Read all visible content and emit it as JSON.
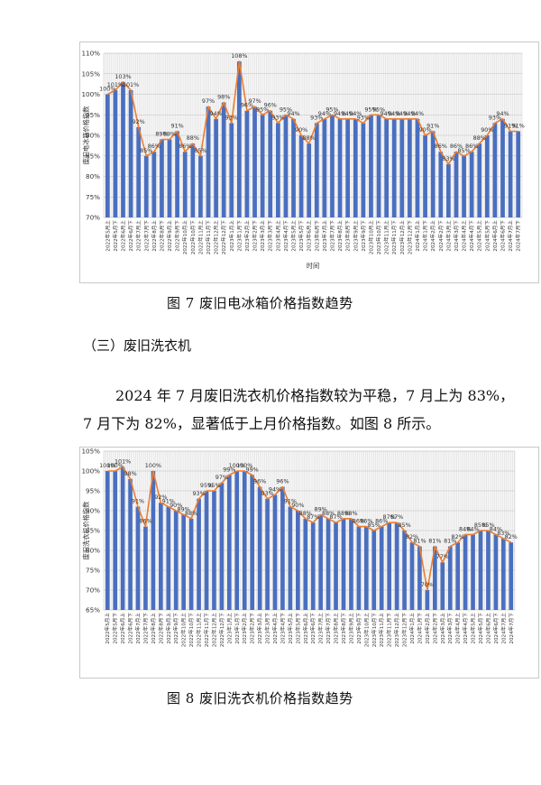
{
  "figure7": {
    "caption": "图 7  废旧电冰箱价格指数趋势",
    "chart_data": {
      "type": "bar",
      "ylabel": "废旧电冰箱价格指数",
      "xlabel": "时间",
      "ylim": [
        70,
        110
      ],
      "yticks": [
        "70%",
        "75%",
        "80%",
        "85%",
        "90%",
        "95%",
        "100%",
        "105%",
        "110%"
      ],
      "grid": true,
      "categories": [
        "2022年5月上",
        "2022年5月下",
        "2022年6月上",
        "2022年6月下",
        "2022年7月上",
        "2022年7月下",
        "2022年8月上",
        "2022年8月下",
        "2022年9月上",
        "2022年9月下",
        "2022年10月上",
        "2022年10月下",
        "2022年11月上",
        "2022年11月下",
        "2022年12月上",
        "2022年12月下",
        "2023年1月上",
        "2023年1月下",
        "2023年2月上",
        "2023年2月下",
        "2023年3月上",
        "2023年3月下",
        "2023年4月上",
        "2023年4月下",
        "2023年5月上",
        "2023年5月下",
        "2023年6月上",
        "2023年6月下",
        "2023年7月上",
        "2023年7月下",
        "2023年8月上",
        "2023年8月下",
        "2023年9月上",
        "2023年9月下",
        "2023年10月上",
        "2023年10月下",
        "2023年11月上",
        "2023年11月下",
        "2023年12月上",
        "2023年12月下",
        "2024年1月上",
        "2024年1月下",
        "2024年2月上",
        "2024年2月下",
        "2024年3月上",
        "2024年3月下",
        "2024年4月上",
        "2024年4月下",
        "2024年5月上",
        "2024年5月下",
        "2024年6月上",
        "2024年6月下",
        "2024年7月上",
        "2024年7月下"
      ],
      "values": [
        100,
        101,
        103,
        101,
        92,
        85,
        86,
        89,
        89,
        91,
        86,
        88,
        85,
        97,
        94,
        98,
        93,
        108,
        96,
        97,
        95,
        96,
        93,
        95,
        94,
        90,
        88,
        93,
        94,
        95,
        94,
        94,
        94,
        93,
        95,
        95,
        94,
        94,
        94,
        94,
        94,
        90,
        91,
        86,
        83,
        86,
        85,
        86,
        88,
        90,
        93,
        94,
        91,
        91
      ],
      "labels": [
        "100%",
        "101%",
        "103%",
        "101%",
        "92%",
        "85%",
        "86%",
        "89%",
        "89%",
        "91%",
        "86%",
        "88%",
        "85%",
        "97%",
        "94%",
        "98%",
        "93%",
        "108%",
        "96%",
        "97%",
        "95%",
        "96%",
        "93%",
        "95%",
        "94%",
        "90%",
        "88%",
        "93%",
        "94%",
        "95%",
        "94%",
        "94%",
        "94%",
        "93%",
        "95%",
        "95%",
        "94%",
        "94%",
        "94%",
        "94%",
        "94%",
        "90%",
        "91%",
        "86%",
        "83%",
        "86%",
        "85%",
        "86%",
        "88%",
        "90%",
        "93%",
        "94%",
        "91%",
        "91%"
      ],
      "colors": {
        "bar": "#4a6fbf",
        "line": "#ed7d31"
      }
    }
  },
  "section": {
    "heading": "（三）废旧洗衣机"
  },
  "paragraph": {
    "line1": "2024 年 7 月废旧洗衣机价格指数较为平稳，7 月上为 83%，",
    "line2": "7 月下为 82%，显著低于上月价格指数。如图 8 所示。"
  },
  "figure8": {
    "caption": "图 8  废旧洗衣机价格指数趋势",
    "chart_data": {
      "type": "bar",
      "ylabel": "废旧洗衣机价格指数",
      "xlabel": "",
      "ylim": [
        65,
        105
      ],
      "yticks": [
        "65%",
        "70%",
        "75%",
        "80%",
        "85%",
        "90%",
        "95%",
        "100%",
        "105%"
      ],
      "grid": true,
      "categories": [
        "2022年5月上",
        "2022年5月下",
        "2022年6月上",
        "2022年6月下",
        "2022年7月上",
        "2022年7月下",
        "2022年8月上",
        "2022年8月下",
        "2022年9月上",
        "2022年9月下",
        "2022年10月上",
        "2022年10月下",
        "2022年11月上",
        "2022年11月下",
        "2022年12月上",
        "2022年12月下",
        "2023年1月上",
        "2023年1月下",
        "2023年2月上",
        "2023年2月下",
        "2023年3月上",
        "2023年3月下",
        "2023年4月上",
        "2023年4月下",
        "2023年5月上",
        "2023年5月下",
        "2023年6月上",
        "2023年6月下",
        "2023年7月上",
        "2023年7月下",
        "2023年8月上",
        "2023年8月下",
        "2023年9月上",
        "2023年9月下",
        "2023年10月上",
        "2023年10月下",
        "2023年11月上",
        "2023年11月下",
        "2023年12月上",
        "2023年12月下",
        "2024年1月上",
        "2024年1月下",
        "2024年2月上",
        "2024年2月下",
        "2024年3月上",
        "2024年3月下",
        "2024年4月上",
        "2024年4月下",
        "2024年5月上",
        "2024年5月下",
        "2024年6月上",
        "2024年6月下",
        "2024年7月上",
        "2024年7月下"
      ],
      "values": [
        100,
        100,
        101,
        98,
        91,
        86,
        100,
        92,
        91,
        90,
        89,
        88,
        93,
        95,
        95,
        97,
        99,
        100,
        100,
        99,
        96,
        93,
        94,
        96,
        91,
        90,
        88,
        87,
        89,
        88,
        87,
        88,
        88,
        86,
        86,
        85,
        86,
        87,
        87,
        85,
        82,
        81,
        70,
        81,
        77,
        81,
        82,
        84,
        84,
        85,
        85,
        84,
        83,
        82
      ],
      "labels": [
        "100%",
        "100%",
        "101%",
        "98%",
        "91%",
        "86%",
        "100%",
        "92%",
        "91%",
        "90%",
        "89%",
        "88%",
        "93%",
        "95%",
        "95%",
        "97%",
        "99%",
        "100%",
        "100%",
        "99%",
        "96%",
        "93%",
        "94%",
        "96%",
        "91%",
        "90%",
        "88%",
        "87%",
        "89%",
        "88%",
        "87%",
        "88%",
        "88%",
        "86%",
        "86%",
        "85%",
        "86%",
        "87%",
        "87%",
        "85%",
        "82%",
        "81%",
        "70%",
        "81%",
        "77%",
        "81%",
        "82%",
        "84%",
        "84%",
        "85%",
        "85%",
        "84%",
        "83%",
        "82%"
      ],
      "colors": {
        "bar": "#4a6fbf",
        "line": "#ed7d31"
      }
    }
  }
}
